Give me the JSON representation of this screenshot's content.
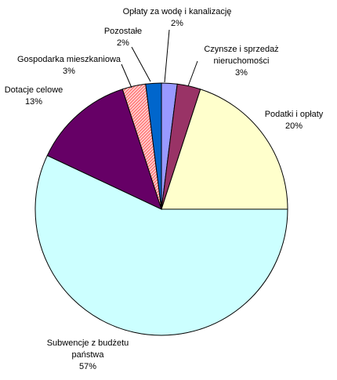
{
  "chart_data": {
    "type": "pie",
    "start": "12 o'clock",
    "direction": "clockwise",
    "slices": [
      {
        "name": "Opłaty za wodę i kanalizację",
        "label_lines": [
          "Opłaty za wodę i kanalizację",
          "2%"
        ],
        "value": 2,
        "color": "#9999ff"
      },
      {
        "name": "Czynsze i sprzedaż nieruchomości",
        "label_lines": [
          "Czynsze i sprzedaż",
          "nieruchomości",
          "3%"
        ],
        "value": 3,
        "color": "#993366"
      },
      {
        "name": "Podatki i opłaty",
        "label_lines": [
          "Podatki i opłaty",
          "20%"
        ],
        "value": 20,
        "color": "#ffffcc"
      },
      {
        "name": "Subwencje z budżetu państwa",
        "label_lines": [
          "Subwencje z budżetu",
          "państwa",
          "57%"
        ],
        "value": 57,
        "color": "#ccffff"
      },
      {
        "name": "Dotacje celowe",
        "label_lines": [
          "Dotacje celowe",
          "13%"
        ],
        "value": 13,
        "color": "#660066"
      },
      {
        "name": "Gospodarka mieszkaniowa",
        "label_lines": [
          "Gospodarka mieszkaniowa",
          "3%"
        ],
        "value": 3,
        "color": "#ff8080"
      },
      {
        "name": "Pozostałe",
        "label_lines": [
          "Pozostałe",
          "2%"
        ],
        "value": 2,
        "color": "#0066cc"
      }
    ]
  }
}
